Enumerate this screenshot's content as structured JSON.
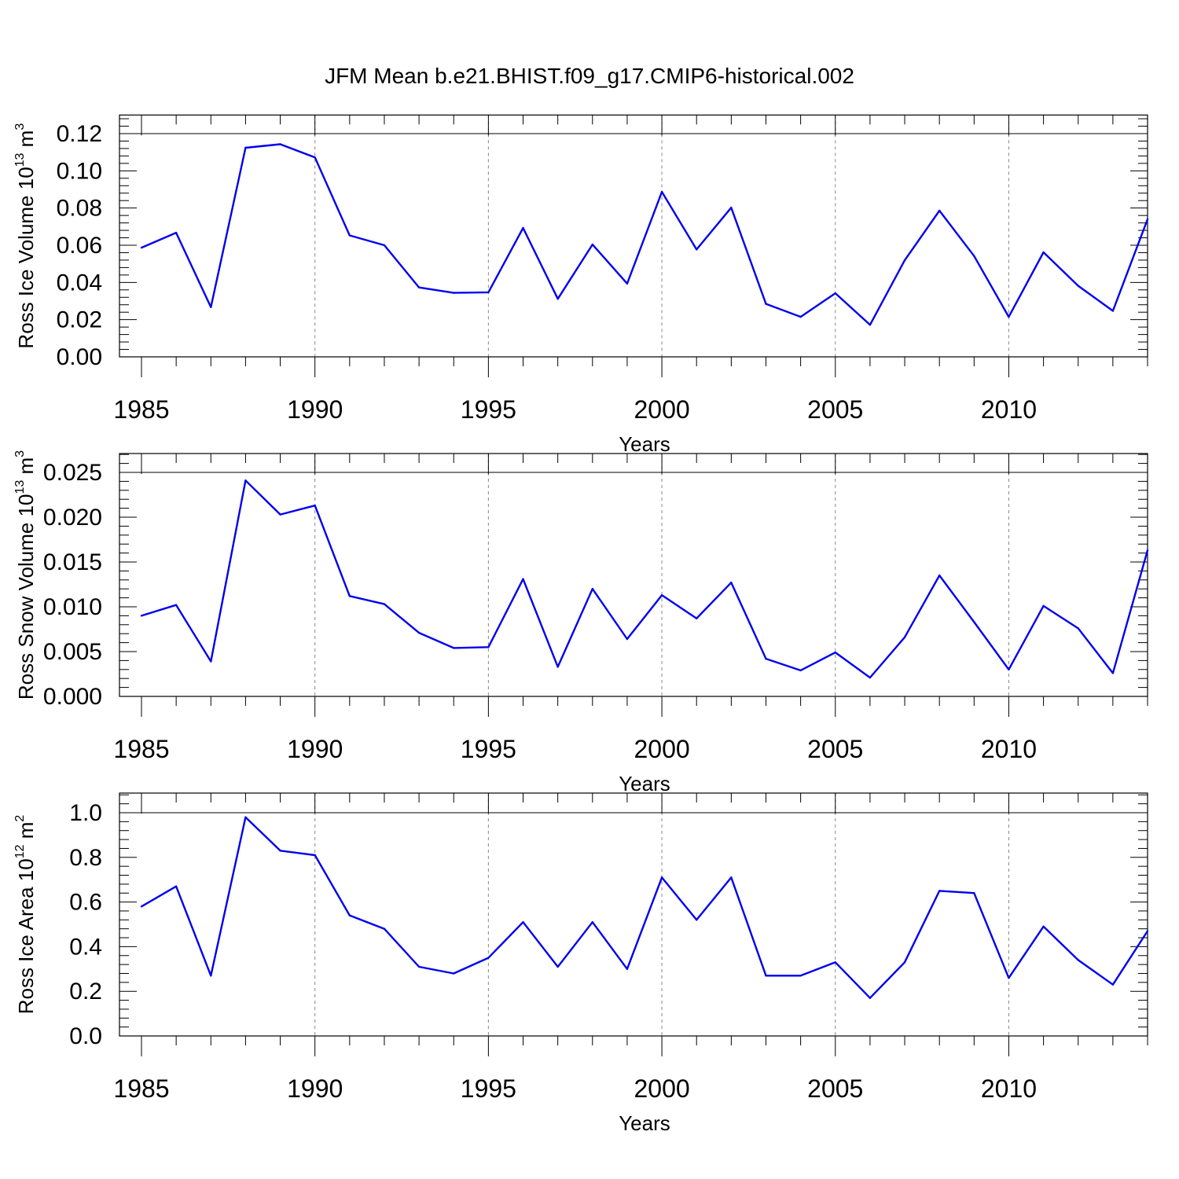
{
  "title": "JFM Mean b.e21.BHIST.f09_g17.CMIP6-historical.002",
  "chart_data": [
    {
      "type": "line",
      "ylabel_main": "Ross Ice Volume 10",
      "ylabel_exp": "13",
      "ylabel_unit": " m",
      "ylabel_unit_exp": "3",
      "xlabel": "Years",
      "xlim": [
        1985,
        2014
      ],
      "ylim": [
        0,
        0.13
      ],
      "yticks": [
        "0.00",
        "0.02",
        "0.04",
        "0.06",
        "0.08",
        "0.10",
        "0.12"
      ],
      "ytick_values": [
        0,
        0.02,
        0.04,
        0.06,
        0.08,
        0.1,
        0.12
      ],
      "xticks": [
        "1985",
        "1990",
        "1995",
        "2000",
        "2005",
        "2010"
      ],
      "xtick_values": [
        1985,
        1990,
        1995,
        2000,
        2005,
        2010
      ],
      "grid_x": [
        1990,
        1995,
        2000,
        2005,
        2010
      ],
      "series": [
        {
          "name": "Ross Ice Volume",
          "color": "#0000ee",
          "x": [
            1985,
            1986,
            1987,
            1988,
            1989,
            1990,
            1991,
            1992,
            1993,
            1994,
            1995,
            1996,
            1997,
            1998,
            1999,
            2000,
            2001,
            2002,
            2003,
            2004,
            2005,
            2006,
            2007,
            2008,
            2009,
            2010,
            2011,
            2012,
            2013,
            2014
          ],
          "values": [
            0.0587,
            0.0667,
            0.0267,
            0.1124,
            0.1143,
            0.1072,
            0.0653,
            0.06,
            0.0373,
            0.0344,
            0.0347,
            0.0693,
            0.0312,
            0.0604,
            0.0394,
            0.0887,
            0.0577,
            0.0802,
            0.0285,
            0.0215,
            0.0342,
            0.0172,
            0.0519,
            0.0786,
            0.0542,
            0.0215,
            0.0562,
            0.0382,
            0.0247,
            0.074
          ]
        }
      ]
    },
    {
      "type": "line",
      "ylabel_main": "Ross Snow Volume 10",
      "ylabel_exp": "13",
      "ylabel_unit": " m",
      "ylabel_unit_exp": "3",
      "xlabel": "Years",
      "xlim": [
        1985,
        2014
      ],
      "ylim": [
        0,
        0.028
      ],
      "yticks": [
        "0.000",
        "0.005",
        "0.010",
        "0.015",
        "0.020",
        "0.025"
      ],
      "ytick_values": [
        0,
        0.005,
        0.01,
        0.015,
        0.02,
        0.025
      ],
      "xticks": [
        "1985",
        "1990",
        "1995",
        "2000",
        "2005",
        "2010"
      ],
      "xtick_values": [
        1985,
        1990,
        1995,
        2000,
        2005,
        2010
      ],
      "grid_x": [
        1990,
        1995,
        2000,
        2005,
        2010
      ],
      "series": [
        {
          "name": "Ross Snow Volume",
          "color": "#0000ee",
          "x": [
            1985,
            1986,
            1987,
            1988,
            1989,
            1990,
            1991,
            1992,
            1993,
            1994,
            1995,
            1996,
            1997,
            1998,
            1999,
            2000,
            2001,
            2002,
            2003,
            2004,
            2005,
            2006,
            2007,
            2008,
            2009,
            2010,
            2011,
            2012,
            2013,
            2014
          ],
          "values": [
            0.009,
            0.0102,
            0.0039,
            0.0241,
            0.0203,
            0.0213,
            0.0112,
            0.0103,
            0.0071,
            0.0054,
            0.0055,
            0.0131,
            0.0033,
            0.012,
            0.0064,
            0.0113,
            0.0087,
            0.0127,
            0.0042,
            0.0029,
            0.0049,
            0.0021,
            0.0066,
            0.0135,
            0.0083,
            0.003,
            0.0101,
            0.0076,
            0.0026,
            0.0163
          ]
        }
      ]
    },
    {
      "type": "line",
      "ylabel_main": "Ross Ice Area 10",
      "ylabel_exp": "12",
      "ylabel_unit": " m",
      "ylabel_unit_exp": "2",
      "xlabel": "Years",
      "xlim": [
        1985,
        2014
      ],
      "ylim": [
        0,
        1.1
      ],
      "yticks": [
        "0.0",
        "0.2",
        "0.4",
        "0.6",
        "0.8",
        "1.0"
      ],
      "ytick_values": [
        0,
        0.2,
        0.4,
        0.6,
        0.8,
        1.0
      ],
      "xticks": [
        "1985",
        "1990",
        "1995",
        "2000",
        "2005",
        "2010"
      ],
      "xtick_values": [
        1985,
        1990,
        1995,
        2000,
        2005,
        2010
      ],
      "grid_x": [
        1990,
        1995,
        2000,
        2005,
        2010
      ],
      "series": [
        {
          "name": "Ross Ice Area",
          "color": "#0000ee",
          "x": [
            1985,
            1986,
            1987,
            1988,
            1989,
            1990,
            1991,
            1992,
            1993,
            1994,
            1995,
            1996,
            1997,
            1998,
            1999,
            2000,
            2001,
            2002,
            2003,
            2004,
            2005,
            2006,
            2007,
            2008,
            2009,
            2010,
            2011,
            2012,
            2013,
            2014
          ],
          "values": [
            0.58,
            0.67,
            0.27,
            0.98,
            0.83,
            0.81,
            0.54,
            0.48,
            0.31,
            0.28,
            0.35,
            0.51,
            0.31,
            0.51,
            0.3,
            0.71,
            0.52,
            0.71,
            0.27,
            0.27,
            0.33,
            0.17,
            0.33,
            0.65,
            0.64,
            0.26,
            0.49,
            0.34,
            0.23,
            0.47
          ]
        }
      ]
    }
  ]
}
